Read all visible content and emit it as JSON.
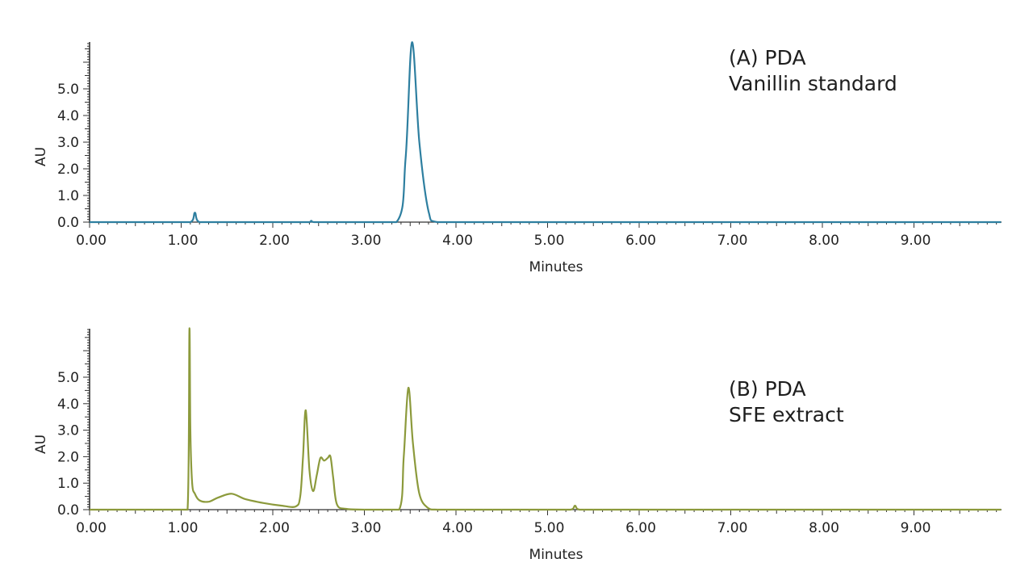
{
  "chart_data": [
    {
      "type": "line",
      "panel": "A",
      "title": "(A) PDA",
      "subtitle": "Vanillin standard",
      "xlabel": "Minutes",
      "ylabel": "AU",
      "xlim": [
        0.0,
        9.95
      ],
      "ylim": [
        0.0,
        6.8
      ],
      "x_tick_labels": [
        "0.00",
        "1.00",
        "2.00",
        "3.00",
        "4.00",
        "5.00",
        "6.00",
        "7.00",
        "8.00",
        "9.00"
      ],
      "y_tick_labels": [
        "0.0",
        "1.0",
        "2.0",
        "3.0",
        "4.0",
        "5.0"
      ],
      "grid": false,
      "legend": "none",
      "color": "#2e7fa0",
      "peaks": [
        {
          "rt": 1.15,
          "height": 0.35,
          "width": 0.012
        },
        {
          "rt": 1.55,
          "height": 0.03,
          "width": 0.05
        },
        {
          "rt": 2.42,
          "height": 0.05,
          "width": 0.03
        },
        {
          "rt": 3.52,
          "height": 6.75,
          "width": 0.045,
          "tail": 0.07
        }
      ],
      "series": [
        {
          "name": "Vanillin standard (PDA)",
          "x": [
            0.0,
            1.1,
            1.15,
            1.2,
            2.4,
            2.42,
            2.45,
            3.35,
            3.45,
            3.52,
            3.6,
            3.7,
            3.8,
            9.95
          ],
          "y": [
            0.0,
            0.0,
            0.35,
            0.0,
            0.0,
            0.05,
            0.0,
            0.0,
            2.4,
            6.75,
            3.0,
            0.4,
            0.0,
            0.0
          ]
        }
      ]
    },
    {
      "type": "line",
      "panel": "B",
      "title": "(B) PDA",
      "subtitle": "SFE extract",
      "xlabel": "Minutes",
      "ylabel": "AU",
      "xlim": [
        0.0,
        9.95
      ],
      "ylim": [
        0.0,
        6.8
      ],
      "x_tick_labels": [
        "0.00",
        "1.00",
        "2.00",
        "3.00",
        "4.00",
        "5.00",
        "6.00",
        "7.00",
        "8.00",
        "9.00"
      ],
      "y_tick_labels": [
        "0.0",
        "1.0",
        "2.0",
        "3.0",
        "4.0",
        "5.0"
      ],
      "grid": false,
      "legend": "none",
      "color": "#8c9a3c",
      "series": [
        {
          "name": "SFE extract (PDA)",
          "x": [
            0.0,
            1.07,
            1.09,
            1.1,
            1.12,
            1.15,
            1.2,
            1.3,
            1.4,
            1.55,
            1.7,
            1.9,
            2.1,
            2.25,
            2.3,
            2.33,
            2.36,
            2.4,
            2.44,
            2.48,
            2.52,
            2.56,
            2.6,
            2.63,
            2.66,
            2.7,
            2.8,
            3.0,
            3.38,
            3.43,
            3.48,
            3.53,
            3.6,
            3.7,
            3.8,
            5.25,
            5.3,
            5.35,
            9.95
          ],
          "y": [
            0.0,
            0.0,
            6.8,
            3.0,
            1.0,
            0.6,
            0.35,
            0.3,
            0.45,
            0.6,
            0.4,
            0.25,
            0.15,
            0.12,
            0.5,
            2.0,
            3.75,
            1.5,
            0.7,
            1.3,
            1.95,
            1.85,
            1.95,
            2.0,
            1.2,
            0.2,
            0.03,
            0.0,
            0.0,
            2.0,
            4.6,
            2.5,
            0.6,
            0.05,
            0.0,
            0.0,
            0.15,
            0.0,
            0.0
          ]
        }
      ]
    }
  ],
  "panels": {
    "a": {
      "title": "(A) PDA",
      "subtitle": "Vanillin standard",
      "xlabel": "Minutes",
      "ylabel": "AU"
    },
    "b": {
      "title": "(B) PDA",
      "subtitle": "SFE extract",
      "xlabel": "Minutes",
      "ylabel": "AU"
    }
  }
}
